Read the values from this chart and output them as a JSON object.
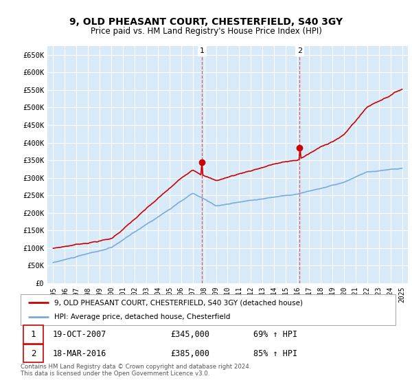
{
  "title": "9, OLD PHEASANT COURT, CHESTERFIELD, S40 3GY",
  "subtitle": "Price paid vs. HM Land Registry's House Price Index (HPI)",
  "ylim": [
    0,
    675000
  ],
  "yticks": [
    0,
    50000,
    100000,
    150000,
    200000,
    250000,
    300000,
    350000,
    400000,
    450000,
    500000,
    550000,
    600000,
    650000
  ],
  "ytick_labels": [
    "£0",
    "£50K",
    "£100K",
    "£150K",
    "£200K",
    "£250K",
    "£300K",
    "£350K",
    "£400K",
    "£450K",
    "£500K",
    "£550K",
    "£600K",
    "£650K"
  ],
  "property_color": "#cc0000",
  "hpi_color": "#7aaadd",
  "vline_color": "#cc0000",
  "ann1_date_str": "19-OCT-2007",
  "ann1_price_str": "£345,000",
  "ann1_pct_str": "69% ↑ HPI",
  "ann1_price": 345000,
  "ann1_year": 2007.8,
  "ann2_date_str": "18-MAR-2016",
  "ann2_price_str": "£385,000",
  "ann2_pct_str": "85% ↑ HPI",
  "ann2_price": 385000,
  "ann2_year": 2016.2,
  "legend_property": "9, OLD PHEASANT COURT, CHESTERFIELD, S40 3GY (detached house)",
  "legend_hpi": "HPI: Average price, detached house, Chesterfield",
  "footnote_line1": "Contains HM Land Registry data © Crown copyright and database right 2024.",
  "footnote_line2": "This data is licensed under the Open Government Licence v3.0.",
  "bg_color": "#d8eaf8",
  "grid_color": "#ffffff"
}
